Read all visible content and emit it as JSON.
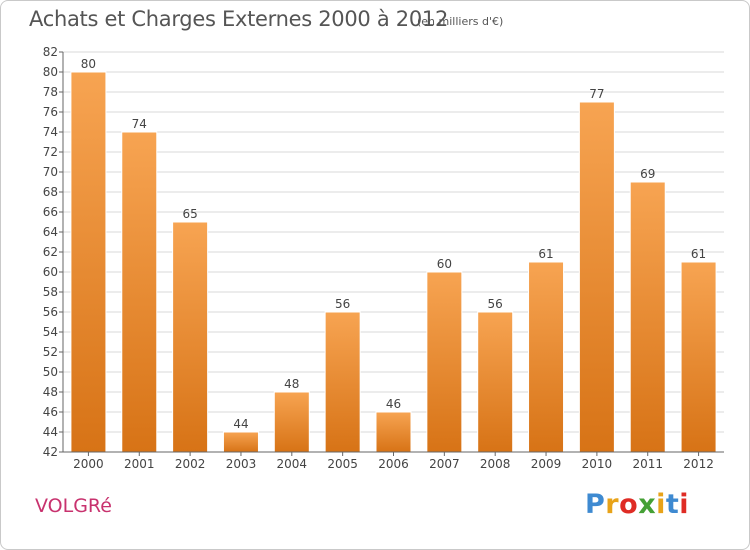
{
  "title": "Achats et Charges Externes 2000 à 2012",
  "subtitle": "(en milliers d'€)",
  "commune": "VOLGRé",
  "logo": {
    "text": "Proxiti",
    "letters": [
      "P",
      "r",
      "o",
      "x",
      "i",
      "t",
      "i"
    ]
  },
  "colors": {
    "bar_top": "#f7a452",
    "bar_bottom": "#d77316",
    "bar_edge": "#ffffff",
    "axis": "#666666",
    "grid": "#d9d9d9",
    "commune": "#c8326e"
  },
  "chart_data": {
    "type": "bar",
    "title": "Achats et Charges Externes 2000 à 2012",
    "subtitle": "(en milliers d'€)",
    "xlabel": "",
    "ylabel": "",
    "categories": [
      "2000",
      "2001",
      "2002",
      "2003",
      "2004",
      "2005",
      "2006",
      "2007",
      "2008",
      "2009",
      "2010",
      "2011",
      "2012"
    ],
    "values": [
      80,
      74,
      65,
      44,
      48,
      56,
      46,
      60,
      56,
      61,
      77,
      69,
      61
    ],
    "data_labels": [
      "80",
      "74",
      "65",
      "44",
      "48",
      "56",
      "46",
      "60",
      "56",
      "61",
      "77",
      "69",
      "61"
    ],
    "ylim": [
      42,
      82
    ],
    "yticks": [
      42,
      44,
      46,
      48,
      50,
      52,
      54,
      56,
      58,
      60,
      62,
      64,
      66,
      68,
      70,
      72,
      74,
      76,
      78,
      80,
      82
    ],
    "grid": true,
    "legend": "none"
  }
}
